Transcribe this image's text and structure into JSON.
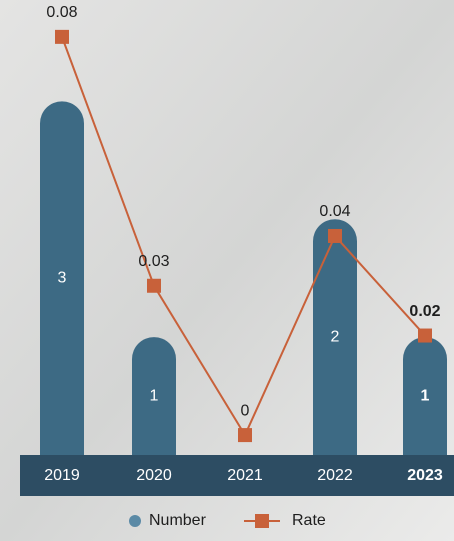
{
  "chart_data": {
    "type": "bar-line",
    "categories": [
      "2019",
      "2020",
      "2021",
      "2022",
      "2023"
    ],
    "highlight": "2023",
    "series": [
      {
        "name": "Number",
        "type": "bar",
        "color": "#3d6a84",
        "values": [
          3,
          1,
          0,
          2,
          1
        ]
      },
      {
        "name": "Rate",
        "type": "line",
        "axis": "y2",
        "color": "#c8613a",
        "values": [
          0.08,
          0.03,
          0,
          0.04,
          0.02
        ]
      }
    ],
    "ylim": [
      0,
      3.8
    ],
    "y2lim": [
      -0.004,
      0.086
    ]
  }
}
